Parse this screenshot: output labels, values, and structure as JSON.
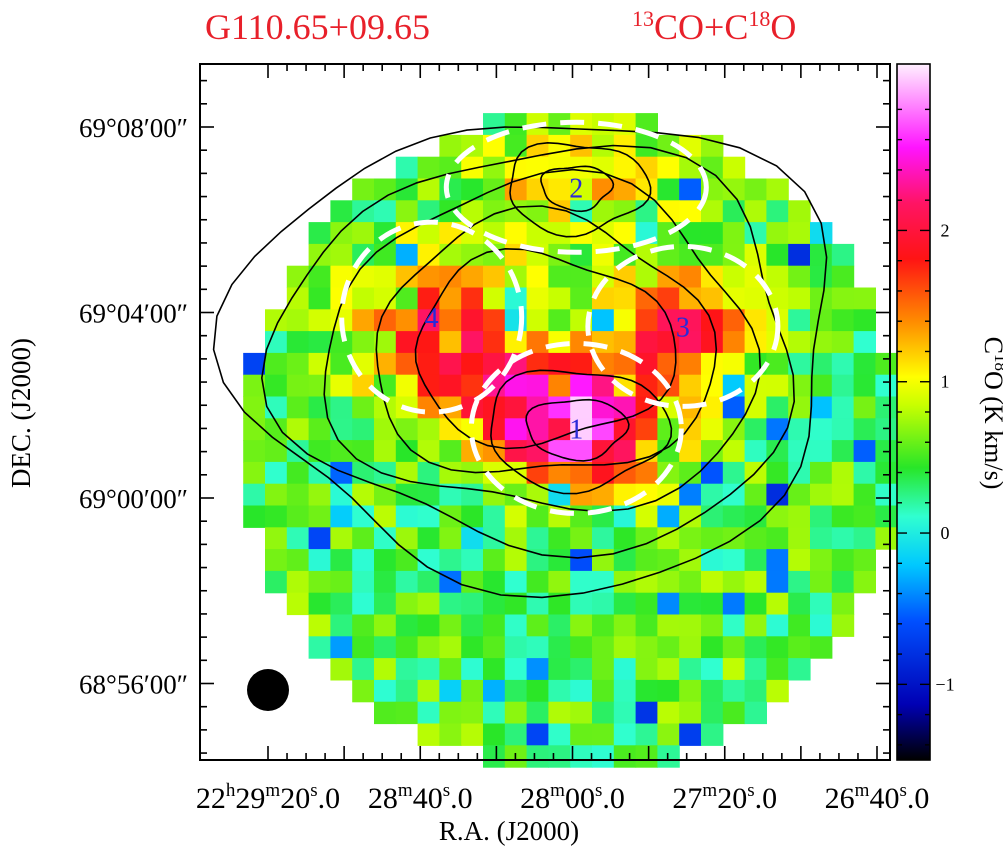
{
  "title_left": "G110.65+09.65",
  "title_right": {
    "iso1": "13",
    "mol1": "CO+C",
    "iso2": "18",
    "mol2": "O"
  },
  "chart_data": {
    "type": "heatmap",
    "xlabel": "R.A. (J2000)",
    "ylabel": "DEC. (J2000)",
    "colorbar_label": {
      "sym": "C",
      "iso": "18",
      "rest": "O (K km/s)"
    },
    "colorbar_ticks": [
      "−1",
      "0",
      "1",
      "2"
    ],
    "colorbar_tick_values": [
      -1,
      0,
      1,
      2
    ],
    "colorbar_range": [
      -1.5,
      3.1
    ],
    "x_ticks": [
      {
        "h": "22",
        "m": "29",
        "s": "20",
        "f": "0"
      },
      {
        "h": "",
        "m": "28",
        "s": "40",
        "f": "0"
      },
      {
        "h": "",
        "m": "28",
        "s": "00",
        "f": "0"
      },
      {
        "h": "",
        "m": "27",
        "s": "20",
        "f": "0"
      },
      {
        "h": "",
        "m": "26",
        "s": "40",
        "f": "0"
      }
    ],
    "y_ticks": [
      "69°08′00″",
      "69°04′00″",
      "69°00′00″",
      "68°56′00″"
    ],
    "y_tick_values_arcmin": [
      8,
      4,
      0,
      -4
    ],
    "x_tick_values_s": [
      20,
      -20,
      -60,
      -100,
      -140
    ],
    "map_center": {
      "ra_s": -60,
      "dec_arcmin": 1.2
    },
    "map_radius_arcmin": 7.1,
    "peak_value": 3.0,
    "clumps": [
      {
        "label": "1",
        "ra_s": -61,
        "dec_arcmin": 1.5
      },
      {
        "label": "2",
        "ra_s": -61,
        "dec_arcmin": 6.7
      },
      {
        "label": "3",
        "ra_s": -89,
        "dec_arcmin": 3.7
      },
      {
        "label": "4",
        "ra_s": -23,
        "dec_arcmin": 3.9
      }
    ],
    "grid": false,
    "beam": "filled circle, bottom-left"
  },
  "colors": {
    "title": "#e8202a",
    "clump_label": "#2a2ad8",
    "contour": "#000000",
    "dashed_outline": "#ffffff"
  }
}
